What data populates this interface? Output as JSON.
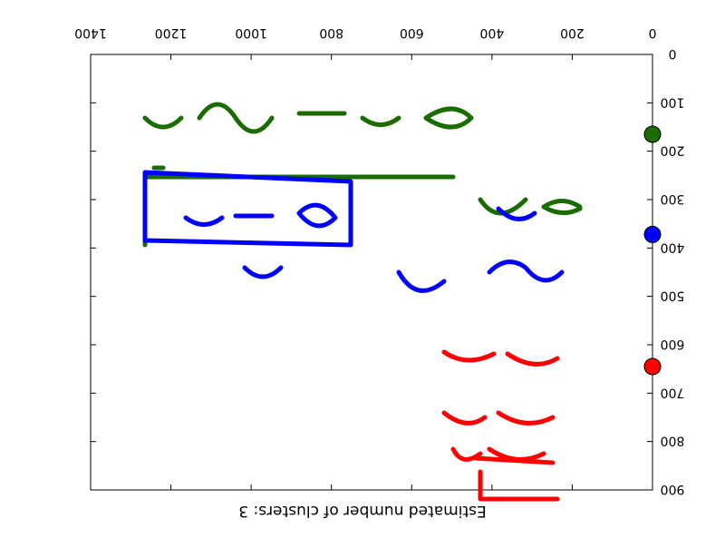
{
  "chart_data": {
    "type": "scatter",
    "title": "",
    "xlabel": "Estimated number of clusters: 3",
    "ylabel": "",
    "xlim": [
      0,
      1400
    ],
    "ylim": [
      0,
      900
    ],
    "x_ticks": [
      "0",
      "200",
      "400",
      "600",
      "800",
      "1000",
      "1200",
      "1400"
    ],
    "y_ticks": [
      "0",
      "100",
      "200",
      "300",
      "400",
      "500",
      "600",
      "700",
      "800",
      "900"
    ],
    "orientation": "rendered rotated 180 degrees (upside down)",
    "grid": false,
    "series": [
      {
        "color": "#1a6b00",
        "x": [
          0
        ],
        "y": [
          165
        ]
      },
      {
        "color": "#0000ff",
        "x": [
          0
        ],
        "y": [
          372
        ]
      },
      {
        "color": "#ff0000",
        "x": [
          0
        ],
        "y": [
          645
        ]
      }
    ],
    "strokes": [
      {
        "color": "#1a6b00",
        "label": "math strokes cluster",
        "content": "d/dx [ (x^(n+1))/(n+1) + C ] = (n+1)x^n/(n+1) + 0 = x^n ; ∫x^n dx = x^(n+1)/(n+1) + C ; n≠-1"
      },
      {
        "color": "#0000ff",
        "label": "math strokes cluster",
        "content": "∫x^n dx = x^(n+1)/(n+1) + C ; = x^6/6 + C ; ∫5x^4 dx = 5∫x^4 dx"
      },
      {
        "color": "#ff0000",
        "label": "math strokes cluster",
        "content": "= 5(x^(n+1)/(n+1) + C) ; = 5(x^5/5 + C) ; = 5(-x^5 + C) ; = 5x^5 + C"
      }
    ]
  }
}
